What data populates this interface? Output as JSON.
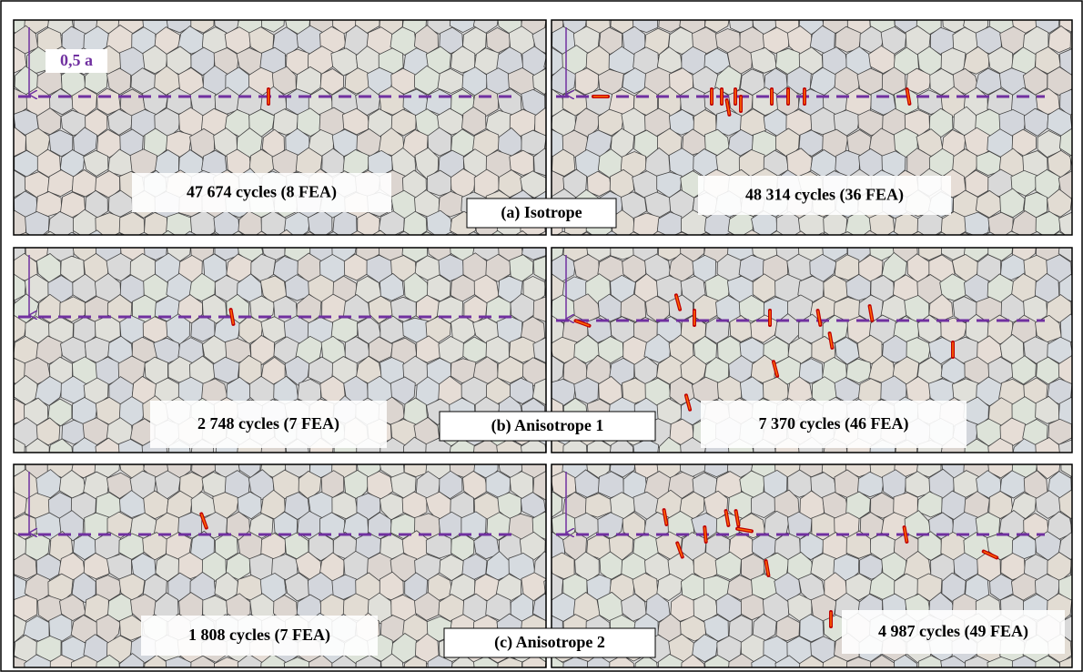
{
  "annotation": "0,5 a",
  "rows": [
    {
      "label": "(a) Isotrope",
      "left": "47 674 cycles (8 FEA)",
      "right": "48 314 cycles (36 FEA)"
    },
    {
      "label": "(b) Anisotrope 1",
      "left": "2 748 cycles (7 FEA)",
      "right": "7 370 cycles (46 FEA)"
    },
    {
      "label": "(c) Anisotrope 2",
      "left": "1 808 cycles (7 FEA)",
      "right": "4 987 cycles (49 FEA)"
    }
  ]
}
